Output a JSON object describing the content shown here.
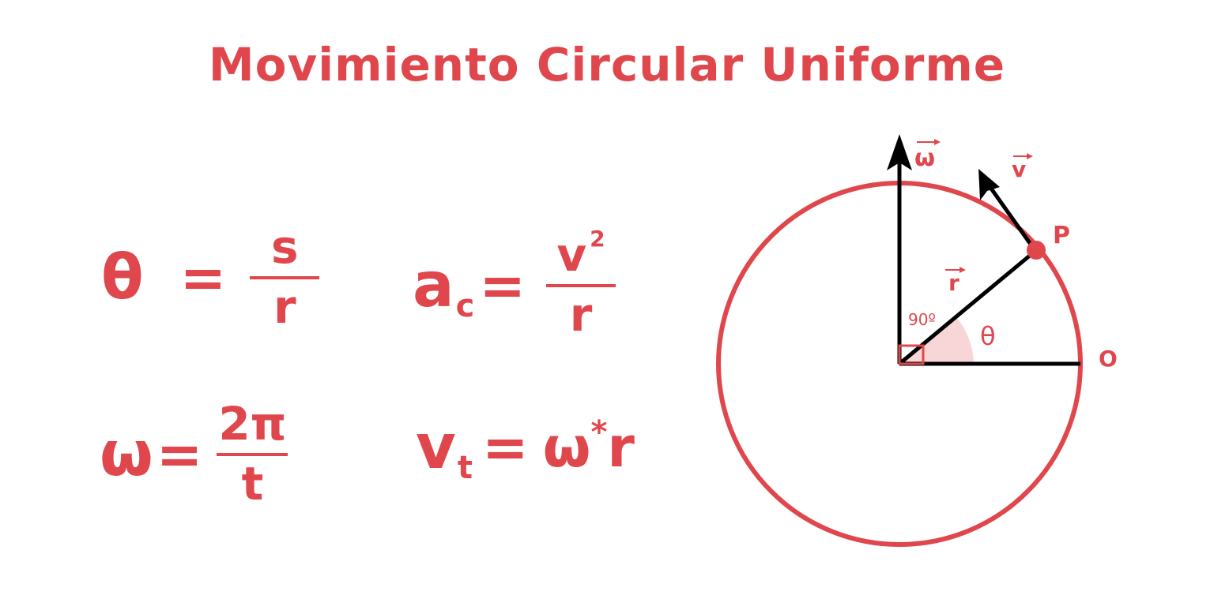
{
  "title": "Movimiento Circular Uniforme",
  "formulas": {
    "angle": {
      "lhs": "θ",
      "eq": "=",
      "num": "s",
      "den": "r"
    },
    "centripetal": {
      "lhs": "a",
      "sub": "c",
      "eq": "=",
      "num": "v",
      "num_exp": "2",
      "den": "r"
    },
    "angular_velocity": {
      "lhs": "ω",
      "eq": "=",
      "num": "2π",
      "den": "t"
    },
    "tangential": {
      "lhs": "v",
      "sub": "t",
      "eq": "=",
      "rhs": "ω",
      "rhs_exp": "*",
      "rhs_end": "r"
    }
  },
  "diagram": {
    "label_omega": "ω",
    "label_v": "v",
    "label_P": "P",
    "label_r": "r",
    "label_right_angle": "90º",
    "label_theta": "θ",
    "label_O": "O",
    "color_main": "#e0474c",
    "color_arrow": "#000000"
  }
}
